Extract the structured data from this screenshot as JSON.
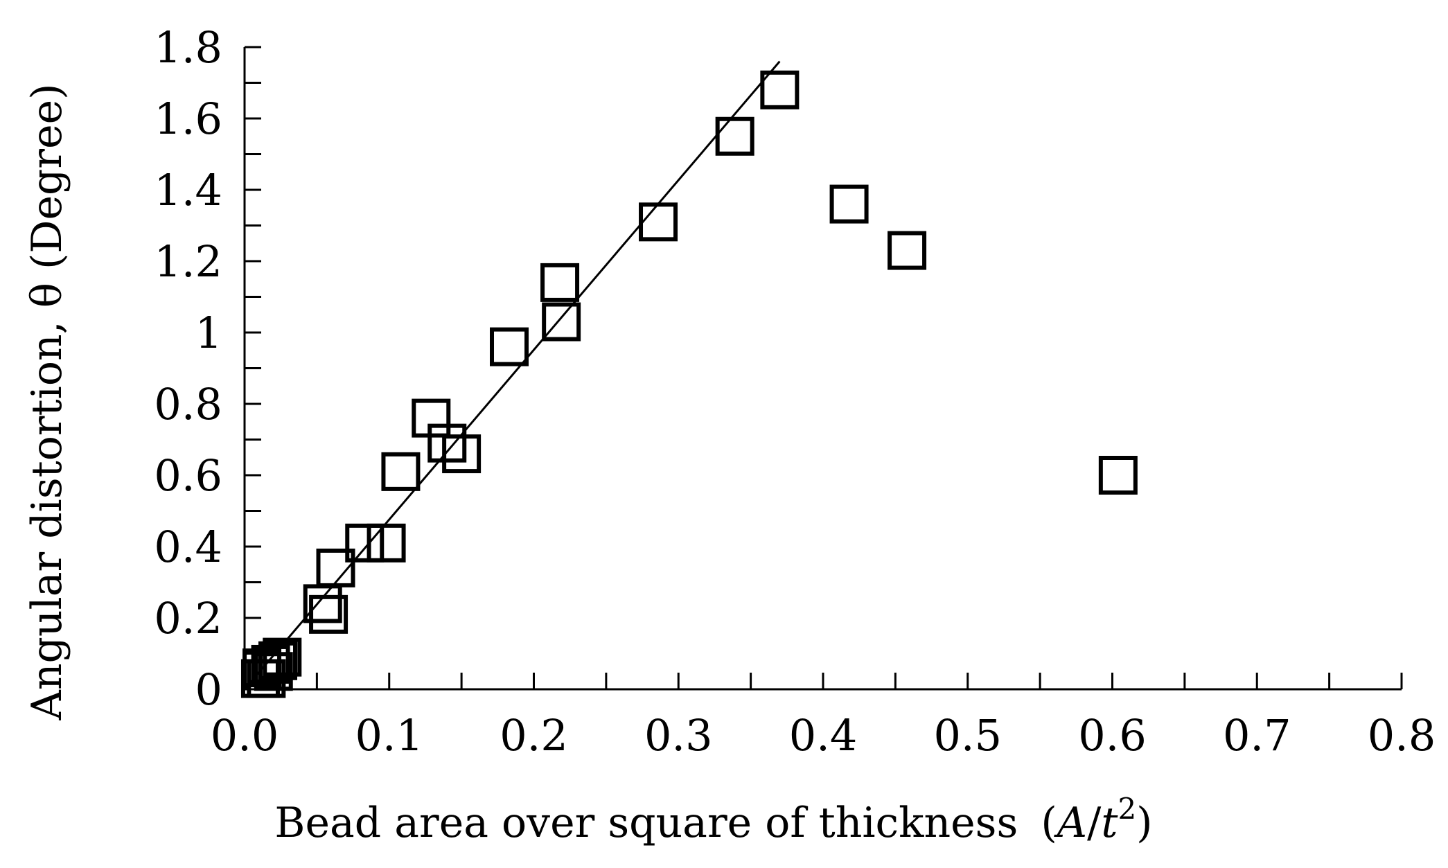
{
  "chart_data": {
    "type": "scatter",
    "title": "",
    "xlabel": {
      "main": "Bead area over square of thickness",
      "expr_open": "(",
      "expr_A": "A",
      "expr_slash": "/",
      "expr_t": "t",
      "expr_sup": "2",
      "expr_close": ")"
    },
    "ylabel": "Angular distortion, θ (Degree)",
    "xlim": [
      0,
      0.8
    ],
    "ylim": [
      0,
      1.8
    ],
    "x_ticks": [
      "0.0",
      "0.1",
      "0.2",
      "0.3",
      "0.4",
      "0.5",
      "0.6",
      "0.7",
      "0.8"
    ],
    "y_ticks": [
      "0",
      "0.2",
      "0.4",
      "0.6",
      "0.8",
      "1",
      "1.2",
      "1.4",
      "1.6",
      "1.8"
    ],
    "grid": false,
    "legend": "none",
    "marker": "open-square",
    "series": [
      {
        "x": [
          0.011,
          0.012,
          0.015,
          0.018,
          0.02,
          0.023,
          0.026,
          0.054,
          0.058,
          0.063,
          0.083,
          0.098,
          0.108,
          0.129,
          0.14,
          0.15,
          0.183,
          0.218,
          0.219,
          0.286,
          0.339,
          0.37,
          0.418,
          0.458,
          0.604
        ],
        "y": [
          0.03,
          0.06,
          0.03,
          0.07,
          0.05,
          0.08,
          0.09,
          0.24,
          0.21,
          0.34,
          0.41,
          0.41,
          0.61,
          0.76,
          0.69,
          0.66,
          0.96,
          1.14,
          1.03,
          1.31,
          1.55,
          1.68,
          1.36,
          1.23,
          0.6
        ]
      }
    ],
    "trendline": {
      "x": [
        0.0,
        0.37
      ],
      "y": [
        0.0,
        1.76
      ]
    }
  }
}
